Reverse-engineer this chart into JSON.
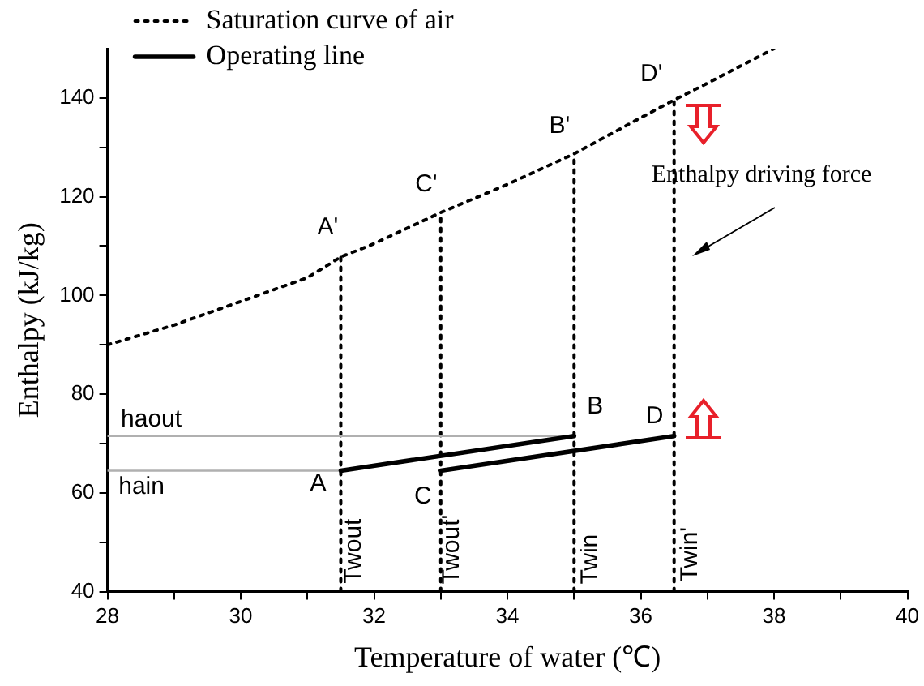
{
  "chart_data": {
    "type": "line",
    "xlabel": "Temperature of water (℃)",
    "ylabel": "Enthalpy (kJ/kg)",
    "xlim": [
      28,
      40
    ],
    "ylim": [
      40,
      150
    ],
    "xticks": [
      28,
      {
        "value": 29,
        "label": null
      },
      30,
      {
        "value": 31,
        "label": null
      },
      32,
      {
        "value": 33,
        "label": null
      },
      34,
      {
        "value": 35,
        "label": null
      },
      36,
      {
        "value": 37,
        "label": null
      },
      38,
      {
        "value": 39,
        "label": null
      },
      40
    ],
    "yticks": [
      40,
      {
        "value": 50,
        "label": null
      },
      60,
      {
        "value": 70,
        "label": null
      },
      80,
      {
        "value": 90,
        "label": null
      },
      100,
      {
        "value": 110,
        "label": null
      },
      120,
      {
        "value": 130,
        "label": null
      },
      140
    ],
    "grid": false,
    "legend": "top left",
    "marker": "none",
    "series": [
      {
        "name": "Saturation curve of air",
        "color": "#000000",
        "line_style": "dotted",
        "x": [
          28,
          29,
          30,
          31,
          31.5,
          32,
          33,
          34,
          35,
          36,
          36.5,
          37,
          38
        ],
        "values": [
          90,
          94,
          98.8,
          103.6,
          107.8,
          110.5,
          116.8,
          122.5,
          128.7,
          136,
          139.6,
          143,
          150
        ]
      },
      {
        "name": "Operating line",
        "color": "#000000",
        "line_style": "solid",
        "x": [
          31.5,
          35
        ],
        "values": [
          64.5,
          71.5
        ]
      },
      {
        "color": "#000000",
        "line_style": "solid",
        "x": [
          33,
          36.5
        ],
        "values": [
          64.5,
          71.5
        ]
      },
      {
        "color": "#b0b0b0",
        "line_style": "solid",
        "x": [
          28,
          35
        ],
        "values": [
          71.5,
          71.5
        ]
      },
      {
        "color": "#b0b0b0",
        "line_style": "solid",
        "x": [
          28,
          31.5
        ],
        "values": [
          64.5,
          64.5
        ]
      },
      {
        "color": "#000000",
        "line_style": "dotted",
        "x": [
          31.5,
          31.5
        ],
        "values": [
          40,
          107.8
        ]
      },
      {
        "color": "#000000",
        "line_style": "dotted",
        "x": [
          33,
          33
        ],
        "values": [
          40,
          116.8
        ]
      },
      {
        "color": "#000000",
        "line_style": "dotted",
        "x": [
          35,
          35
        ],
        "values": [
          40,
          128.7
        ]
      },
      {
        "color": "#000000",
        "line_style": "dotted",
        "x": [
          36.5,
          36.5
        ],
        "values": [
          40,
          139.6
        ]
      }
    ],
    "annotations": [
      {
        "text": "A'",
        "x": 31.5,
        "y": 107.8
      },
      {
        "text": "C'",
        "x": 33,
        "y": 116.8
      },
      {
        "text": "B'",
        "x": 35,
        "y": 128.7
      },
      {
        "text": "D'",
        "x": 36.5,
        "y": 139.6
      },
      {
        "text": "A",
        "x": 31.5,
        "y": 64.5
      },
      {
        "text": "C",
        "x": 33,
        "y": 64.5
      },
      {
        "text": "B",
        "x": 35,
        "y": 71.5
      },
      {
        "text": "D",
        "x": 36.5,
        "y": 71.5
      },
      {
        "text": "haout",
        "x": 28,
        "y": 71.5
      },
      {
        "text": "hain",
        "x": 28,
        "y": 64.5
      },
      {
        "text": "Twout",
        "x": 31.5,
        "y": 40
      },
      {
        "text": "Twout'",
        "x": 33,
        "y": 40
      },
      {
        "text": "Twin",
        "x": 35,
        "y": 40
      },
      {
        "text": "Twin'",
        "x": 36.5,
        "y": 40
      },
      "Enthalpy driving force"
    ]
  }
}
